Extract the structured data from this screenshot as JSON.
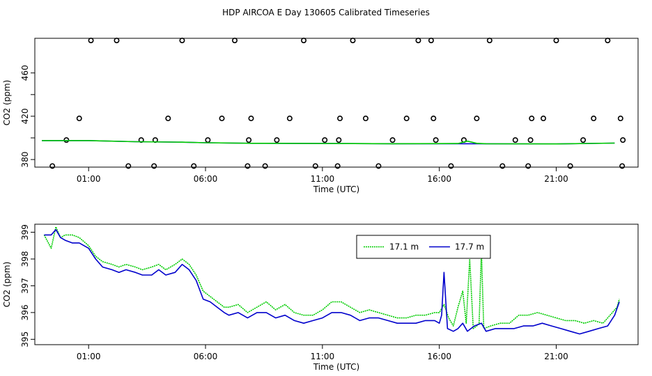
{
  "title": "HDP AIRCOA E  Day 130605  Calibrated Timeseries",
  "colors": {
    "green": "#00cc00",
    "blue": "#0000cc",
    "axis": "#000000"
  },
  "chart_data": [
    {
      "type": "scatter",
      "xlabel": "Time (UTC)",
      "ylabel": "CO2 (ppm)",
      "xlim": [
        -1.3,
        24.5
      ],
      "ylim": [
        373,
        492
      ],
      "xticks": [
        1,
        6,
        11,
        16,
        21
      ],
      "xtick_labels": [
        "01:00",
        "06:00",
        "11:00",
        "16:00",
        "21:00"
      ],
      "yticks": [
        380,
        420,
        460
      ],
      "yticks_extra": [
        400,
        440
      ],
      "ytick_labels": [
        "380",
        "420",
        "460"
      ],
      "grid": false,
      "series": [
        {
          "kind": "points",
          "x": [
            -0.55,
            0.05,
            0.6,
            1.1,
            2.2,
            2.7,
            3.25,
            3.8,
            3.85,
            4.4,
            5.0,
            5.5,
            6.1,
            6.7,
            7.25,
            7.8,
            7.85,
            7.95,
            8.55,
            9.05,
            9.6,
            10.2,
            10.7,
            11.1,
            11.65,
            11.7,
            11.75,
            12.3,
            12.85,
            13.4,
            14.0,
            14.6,
            15.1,
            15.65,
            15.75,
            15.85,
            16.5,
            17.05,
            17.6,
            18.15,
            18.7,
            19.25,
            19.8,
            19.9,
            19.95,
            20.45,
            21.0,
            21.6,
            22.15,
            22.6,
            23.2,
            23.75,
            23.82,
            23.85
          ],
          "y": [
            374,
            398,
            418,
            490,
            490,
            374,
            398,
            374,
            398,
            418,
            490,
            374,
            398,
            418,
            490,
            374,
            398,
            418,
            374,
            398,
            418,
            490,
            374,
            398,
            374,
            398,
            418,
            490,
            418,
            374,
            398,
            418,
            490,
            490,
            418,
            398,
            374,
            398,
            418,
            490,
            374,
            398,
            374,
            398,
            418,
            418,
            490,
            374,
            398,
            418,
            490,
            418,
            374,
            398
          ]
        },
        {
          "kind": "line",
          "color": "blue",
          "x": [
            -1,
            1,
            3,
            5,
            6,
            8,
            11,
            14,
            17,
            21,
            23.5
          ],
          "y": [
            397.5,
            397.5,
            396.5,
            396.0,
            395.5,
            395.0,
            394.8,
            394.6,
            394.6,
            394.4,
            395.2
          ]
        },
        {
          "kind": "line",
          "color": "green",
          "x": [
            -1,
            1,
            3,
            5,
            6,
            8,
            11,
            14,
            16.8,
            17.2,
            17.6,
            18,
            21,
            23.5
          ],
          "y": [
            397.5,
            397.5,
            396.5,
            396.0,
            395.5,
            395.0,
            394.8,
            394.6,
            394.8,
            397.0,
            395.0,
            394.6,
            394.4,
            395.2
          ]
        }
      ]
    },
    {
      "type": "line",
      "xlabel": "Time (UTC)",
      "ylabel": "CO2 (ppm)",
      "xlim": [
        -1.3,
        24.5
      ],
      "ylim": [
        394.8,
        399.3
      ],
      "xticks": [
        1,
        6,
        11,
        16,
        21
      ],
      "xtick_labels": [
        "01:00",
        "06:00",
        "11:00",
        "16:00",
        "21:00"
      ],
      "yticks": [
        395,
        396,
        397,
        398,
        399
      ],
      "ytick_labels": [
        "395",
        "396",
        "397",
        "398",
        "399"
      ],
      "grid": false,
      "legend_position": "top-right",
      "series": [
        {
          "name": "17.1 m",
          "color": "green",
          "style": "dotted",
          "x": [
            -0.9,
            -0.6,
            -0.4,
            -0.2,
            0,
            0.3,
            0.6,
            1.0,
            1.3,
            1.6,
            2.0,
            2.3,
            2.6,
            3.0,
            3.3,
            3.7,
            4.0,
            4.3,
            4.7,
            5.0,
            5.3,
            5.6,
            5.9,
            6.2,
            6.5,
            6.8,
            7.0,
            7.4,
            7.8,
            8.2,
            8.6,
            9.0,
            9.4,
            9.8,
            10.2,
            10.6,
            11.0,
            11.4,
            11.8,
            12.2,
            12.6,
            13.0,
            13.4,
            13.8,
            14.2,
            14.6,
            15.0,
            15.4,
            15.8,
            16.0,
            16.2,
            16.4,
            16.6,
            16.8,
            17.0,
            17.15,
            17.3,
            17.45,
            17.6,
            17.7,
            17.8,
            17.9,
            18.2,
            18.6,
            19.0,
            19.4,
            19.8,
            20.2,
            20.6,
            21.0,
            21.4,
            21.8,
            22.2,
            22.6,
            23.0,
            23.4,
            23.6,
            23.7
          ],
          "y": [
            398.9,
            398.4,
            399.2,
            398.8,
            398.9,
            398.9,
            398.8,
            398.5,
            398.1,
            397.9,
            397.8,
            397.7,
            397.8,
            397.7,
            397.6,
            397.7,
            397.8,
            397.6,
            397.8,
            398.0,
            397.8,
            397.4,
            396.8,
            396.6,
            396.4,
            396.2,
            396.2,
            396.3,
            396.0,
            396.2,
            396.4,
            396.1,
            396.3,
            396.0,
            395.9,
            395.9,
            396.1,
            396.4,
            396.4,
            396.2,
            396.0,
            396.1,
            396.0,
            395.9,
            395.8,
            395.8,
            395.9,
            395.9,
            396.0,
            396.0,
            396.3,
            395.8,
            395.5,
            396.2,
            396.8,
            395.6,
            398.0,
            395.4,
            395.5,
            395.6,
            398.3,
            395.4,
            395.5,
            395.6,
            395.6,
            395.9,
            395.9,
            396.0,
            395.9,
            395.8,
            395.7,
            395.7,
            395.6,
            395.7,
            395.6,
            396.0,
            396.2,
            396.5
          ]
        },
        {
          "name": "17.7 m",
          "color": "blue",
          "style": "solid",
          "x": [
            -0.9,
            -0.6,
            -0.4,
            -0.2,
            0,
            0.3,
            0.6,
            1.0,
            1.3,
            1.6,
            2.0,
            2.3,
            2.6,
            3.0,
            3.3,
            3.7,
            4.0,
            4.3,
            4.7,
            5.0,
            5.3,
            5.6,
            5.9,
            6.2,
            6.5,
            6.8,
            7.0,
            7.4,
            7.8,
            8.2,
            8.6,
            9.0,
            9.4,
            9.8,
            10.2,
            10.6,
            11.0,
            11.4,
            11.8,
            12.2,
            12.6,
            13.0,
            13.4,
            13.8,
            14.2,
            14.6,
            15.0,
            15.4,
            15.8,
            16.0,
            16.1,
            16.2,
            16.35,
            16.6,
            16.8,
            17.0,
            17.2,
            17.5,
            17.8,
            18.0,
            18.4,
            18.8,
            19.2,
            19.6,
            20.0,
            20.4,
            20.8,
            21.2,
            21.6,
            22.0,
            22.4,
            22.8,
            23.2,
            23.5,
            23.7
          ],
          "y": [
            398.9,
            398.9,
            399.1,
            398.8,
            398.7,
            398.6,
            398.6,
            398.4,
            398.0,
            397.7,
            397.6,
            397.5,
            397.6,
            397.5,
            397.4,
            397.4,
            397.6,
            397.4,
            397.5,
            397.8,
            397.6,
            397.2,
            396.5,
            396.4,
            396.2,
            396.0,
            395.9,
            396.0,
            395.8,
            396.0,
            396.0,
            395.8,
            395.9,
            395.7,
            395.6,
            395.7,
            395.8,
            396.0,
            396.0,
            395.9,
            395.7,
            395.8,
            395.8,
            395.7,
            395.6,
            395.6,
            395.6,
            395.7,
            395.7,
            395.6,
            395.9,
            397.5,
            395.4,
            395.3,
            395.4,
            395.6,
            395.3,
            395.5,
            395.6,
            395.3,
            395.4,
            395.4,
            395.4,
            395.5,
            395.5,
            395.6,
            395.5,
            395.4,
            395.3,
            395.2,
            395.3,
            395.4,
            395.5,
            395.9,
            396.4
          ]
        }
      ]
    }
  ]
}
